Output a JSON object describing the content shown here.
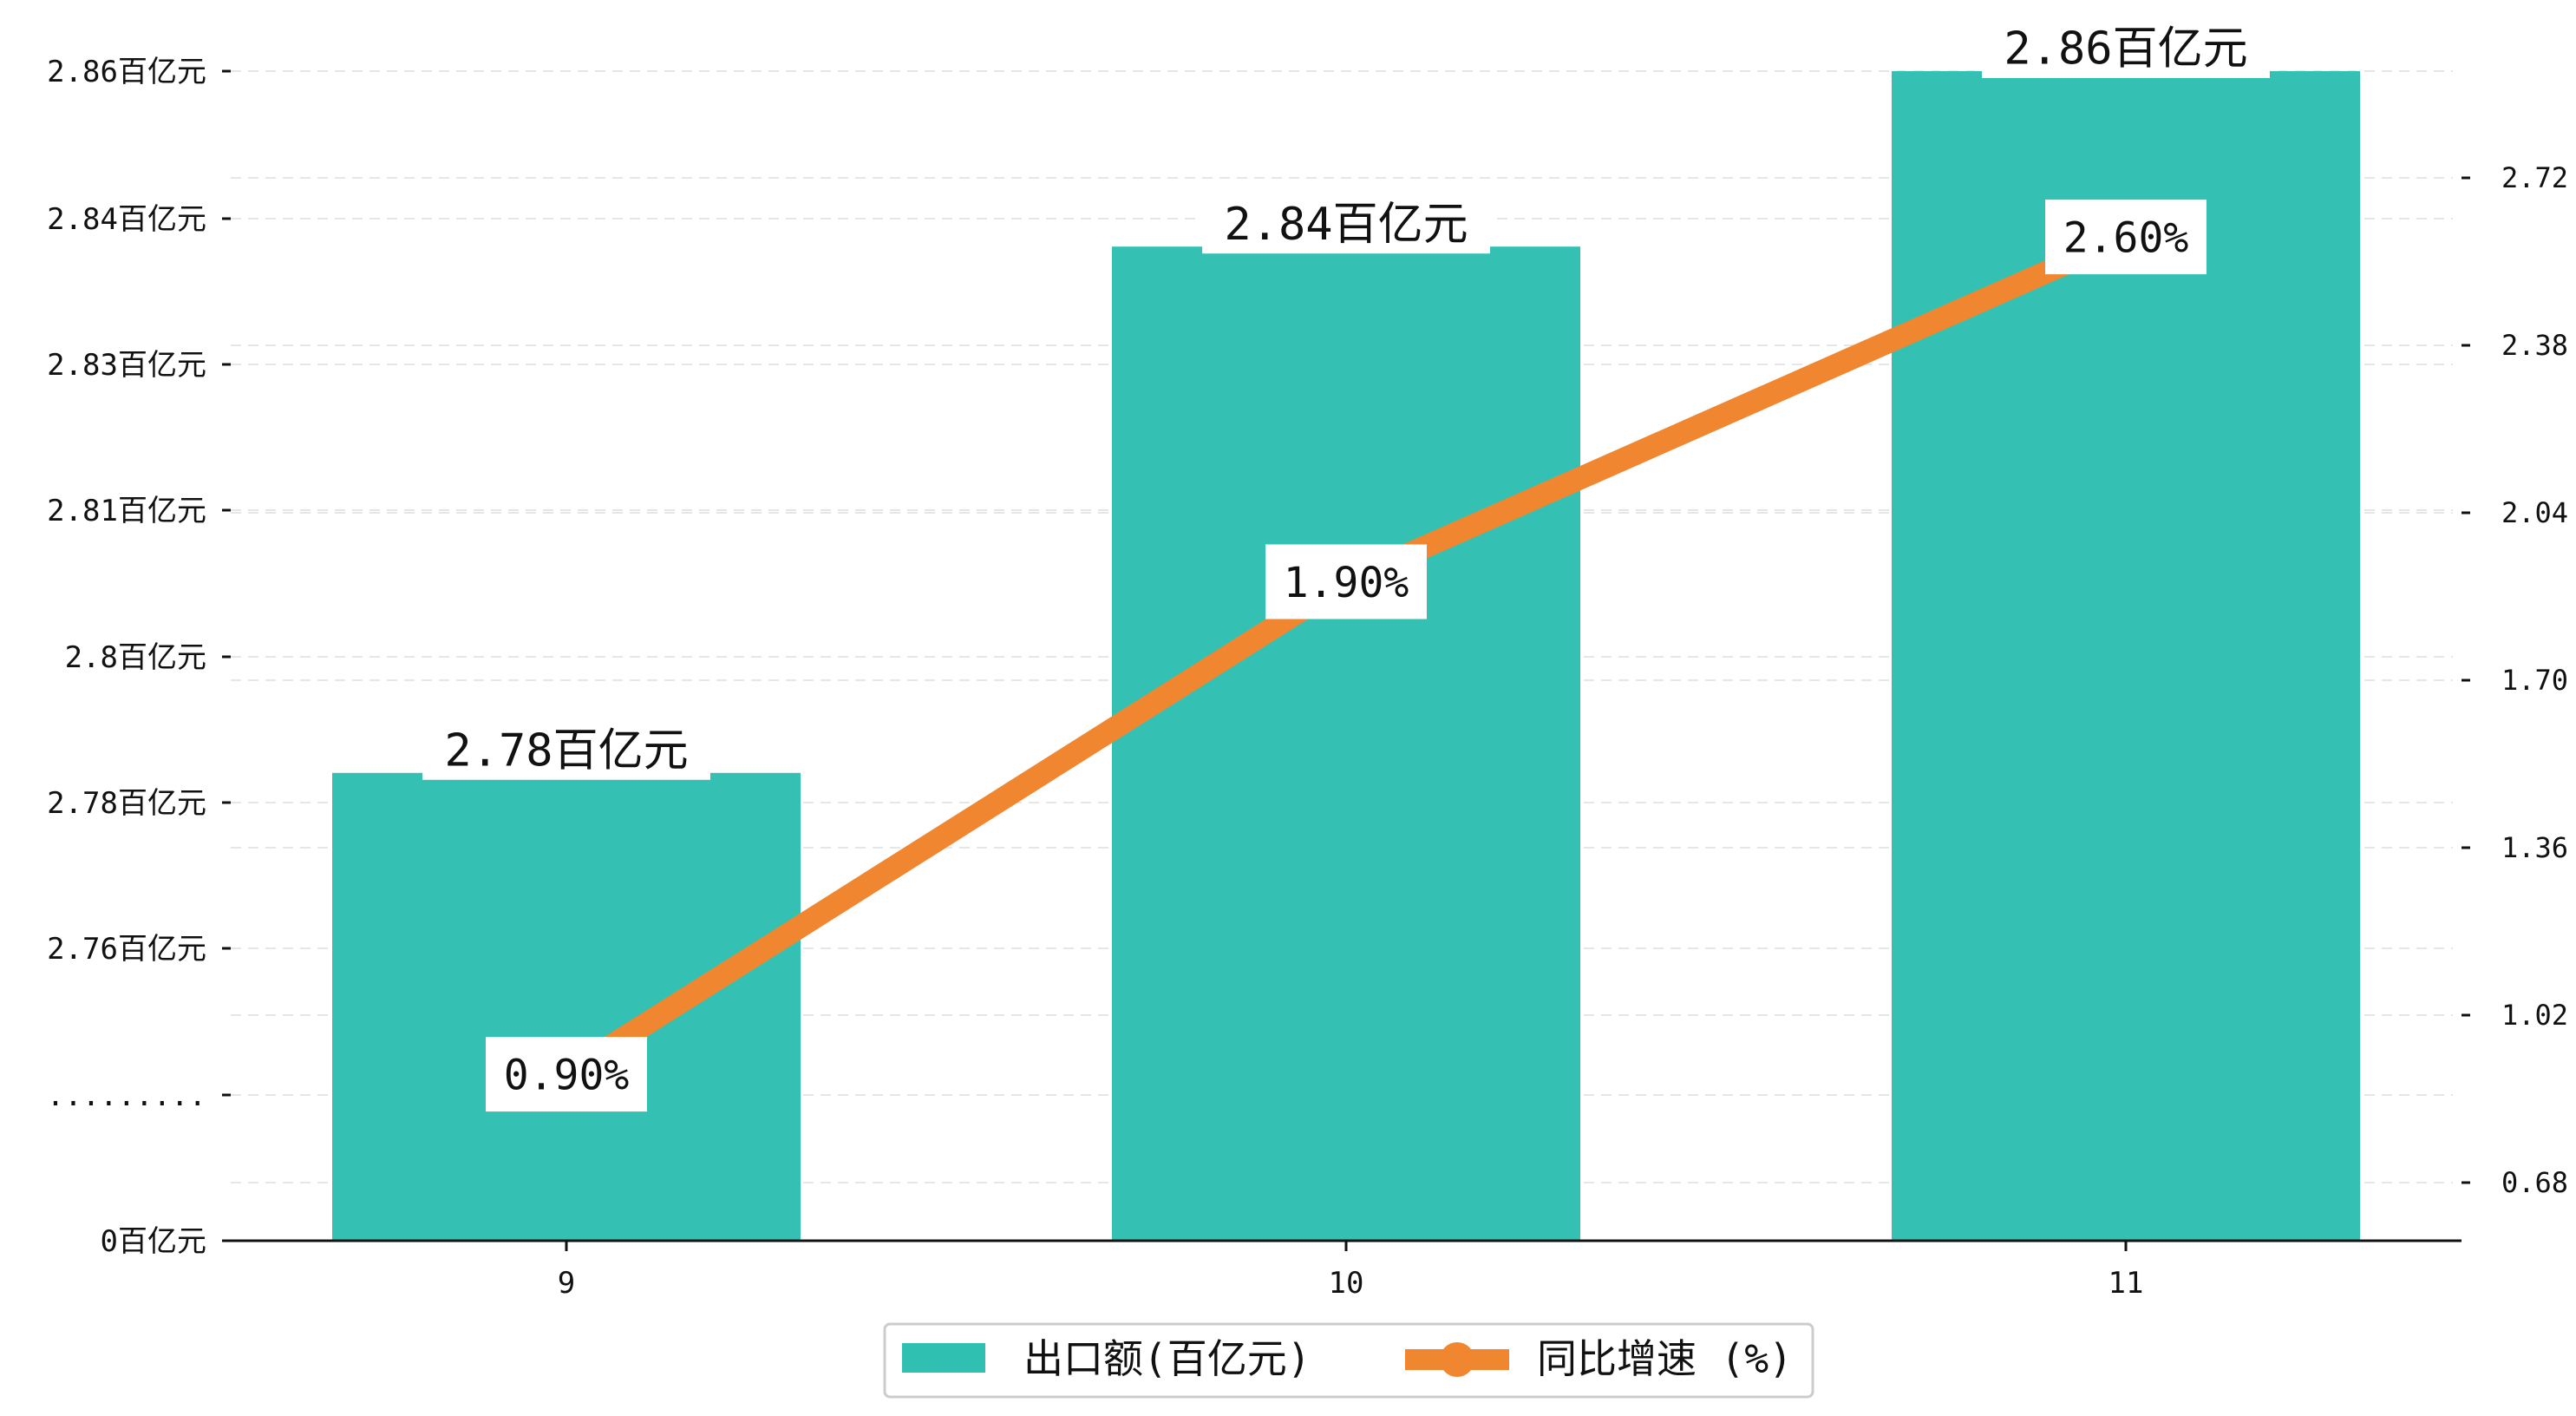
{
  "chart_data": {
    "type": "bar",
    "categories": [
      "9",
      "10",
      "11"
    ],
    "series": [
      {
        "name": "出口额(百亿元)",
        "kind": "bar",
        "axis": "left",
        "values": [
          2.78,
          2.84,
          2.86
        ],
        "labels": [
          "2.78百亿元",
          "2.84百亿元",
          "2.86百亿元"
        ],
        "color": "#30C0B2"
      },
      {
        "name": "同比增速 (%)",
        "kind": "line",
        "axis": "right",
        "values": [
          0.9,
          1.9,
          2.6
        ],
        "labels": [
          "0.90%",
          "1.90%",
          "2.60%"
        ],
        "color": "#F0862F"
      }
    ],
    "left_axis": {
      "ticks": [
        {
          "value": 0,
          "label": "0百亿元"
        },
        {
          "value": null,
          "label": "........."
        },
        {
          "value": 2.76,
          "label": "2.76百亿元"
        },
        {
          "value": 2.78,
          "label": "2.78百亿元"
        },
        {
          "value": 2.795,
          "label": "2.8百亿元"
        },
        {
          "value": 2.81,
          "label": "2.81百亿元"
        },
        {
          "value": 2.83,
          "label": "2.83百亿元"
        },
        {
          "value": 2.84,
          "label": "2.84百亿元"
        },
        {
          "value": 2.86,
          "label": "2.86百亿元"
        }
      ],
      "broken": true
    },
    "right_axis": {
      "ticks": [
        {
          "value": 0.68,
          "label": "0.68"
        },
        {
          "value": 1.02,
          "label": "1.02"
        },
        {
          "value": 1.36,
          "label": "1.36"
        },
        {
          "value": 1.7,
          "label": "1.70"
        },
        {
          "value": 2.04,
          "label": "2.04"
        },
        {
          "value": 2.38,
          "label": "2.38"
        },
        {
          "value": 2.72,
          "label": "2.72"
        }
      ],
      "ylim": [
        0.56,
        2.93
      ]
    },
    "grid": true,
    "legend_position": "bottom-center"
  },
  "colors": {
    "bar": "#30C0B2",
    "line": "#F0862F",
    "grid": "#E6E6E6",
    "axis": "#111111"
  }
}
